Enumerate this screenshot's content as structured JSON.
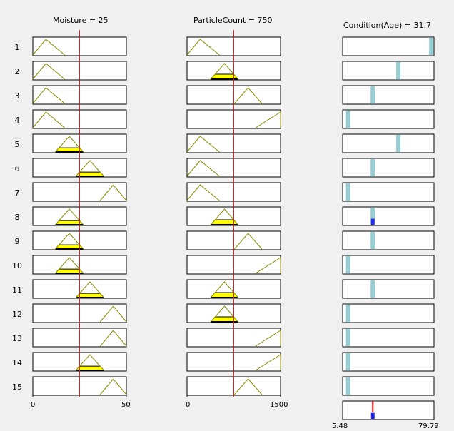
{
  "inputs": [
    {
      "name": "Moisture",
      "value_label": "Moisture = 25",
      "value": 25,
      "range": [
        0,
        50
      ],
      "tick_min": "0",
      "tick_max": "50",
      "mfs": [
        {
          "a": 0,
          "b": 7,
          "c": 17
        },
        {
          "a": 12,
          "b": 19.5,
          "c": 27
        },
        {
          "a": 23,
          "b": 30.5,
          "c": 38
        },
        {
          "a": 36,
          "b": 43,
          "c": 50
        }
      ]
    },
    {
      "name": "ParticleCount",
      "value_label": "ParticleCount = 750",
      "value": 750,
      "range": [
        0,
        1500
      ],
      "tick_min": "0",
      "tick_max": "1500",
      "mfs": [
        {
          "a": 0,
          "b": 210,
          "c": 520
        },
        {
          "a": 380,
          "b": 600,
          "c": 820
        },
        {
          "a": 760,
          "b": 980,
          "c": 1200
        },
        {
          "a": 1100,
          "b": 1500,
          "c": 1500
        }
      ]
    }
  ],
  "output": {
    "name": "Condition(Age)",
    "value_label": "Condition(Age) = 31.7",
    "value": 31.7,
    "tick_min": "5.48",
    "tick_max": "79.79",
    "range": [
      5.48,
      79.79
    ]
  },
  "rules": [
    {
      "id": "1",
      "input_mfs": [
        0,
        0
      ],
      "out_pos": 0.97,
      "out_fire": 0
    },
    {
      "id": "2",
      "input_mfs": [
        0,
        1
      ],
      "out_pos": 0.61,
      "out_fire": 0
    },
    {
      "id": "3",
      "input_mfs": [
        0,
        2
      ],
      "out_pos": 0.33,
      "out_fire": 0
    },
    {
      "id": "4",
      "input_mfs": [
        0,
        3
      ],
      "out_pos": 0.06,
      "out_fire": 0
    },
    {
      "id": "5",
      "input_mfs": [
        1,
        0
      ],
      "out_pos": 0.61,
      "out_fire": 0
    },
    {
      "id": "6",
      "input_mfs": [
        2,
        0
      ],
      "out_pos": 0.33,
      "out_fire": 0
    },
    {
      "id": "7",
      "input_mfs": [
        3,
        0
      ],
      "out_pos": 0.06,
      "out_fire": 0
    },
    {
      "id": "8",
      "input_mfs": [
        1,
        1
      ],
      "out_pos": 0.33,
      "out_fire": 0.35
    },
    {
      "id": "9",
      "input_mfs": [
        1,
        2
      ],
      "out_pos": 0.33,
      "out_fire": 0
    },
    {
      "id": "10",
      "input_mfs": [
        1,
        3
      ],
      "out_pos": 0.06,
      "out_fire": 0
    },
    {
      "id": "11",
      "input_mfs": [
        2,
        1
      ],
      "out_pos": 0.33,
      "out_fire": 0
    },
    {
      "id": "12",
      "input_mfs": [
        3,
        1
      ],
      "out_pos": 0.06,
      "out_fire": 0
    },
    {
      "id": "13",
      "input_mfs": [
        3,
        3
      ],
      "out_pos": 0.06,
      "out_fire": 0
    },
    {
      "id": "14",
      "input_mfs": [
        2,
        3
      ],
      "out_pos": 0.06,
      "out_fire": 0
    },
    {
      "id": "15",
      "input_mfs": [
        3,
        2
      ],
      "out_pos": 0.06,
      "out_fire": 0
    }
  ],
  "aggregate": {
    "out_pos": 0.33,
    "out_fire": 0.35
  },
  "colors": {
    "background": "#f0f0f0",
    "mf_line": "#8a8a00",
    "fill": "#ffff00",
    "index_line": "#e02020",
    "output_bar": "#96cdd2",
    "output_fill": "#1e28f0",
    "defuzz_line": "#ff0000",
    "frame": "#000000"
  }
}
